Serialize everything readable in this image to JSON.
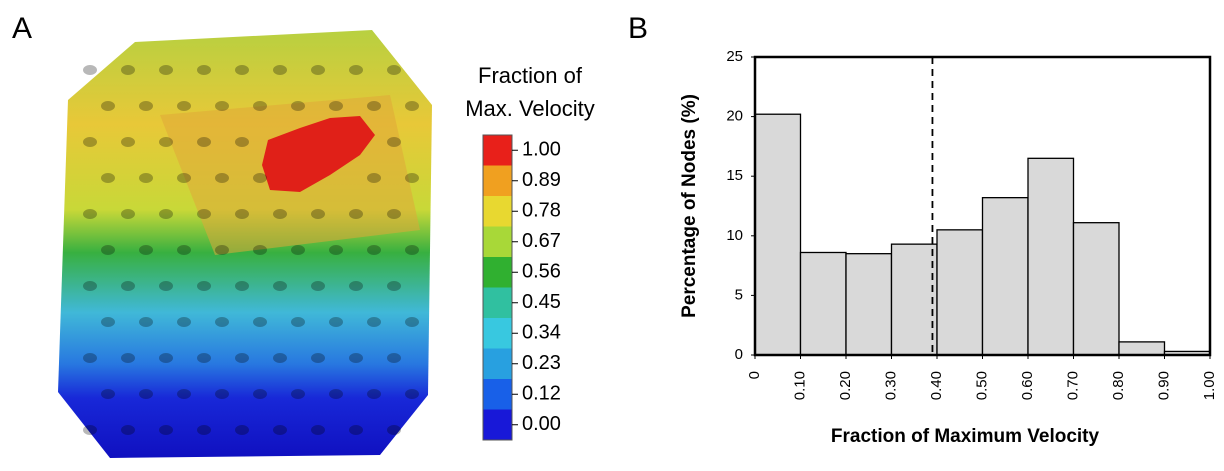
{
  "panel_a": {
    "label": "A",
    "legend_title": [
      "Fraction of",
      "Max. Velocity"
    ],
    "colorbar": {
      "ticks": [
        {
          "value": 1,
          "label": "1.00"
        },
        0.89,
        0.78,
        0.67,
        0.56,
        0.45,
        0.34,
        0.23,
        0.12,
        {
          "value": 0,
          "label": "0.00"
        }
      ],
      "colors": [
        "#e8201a",
        "#f0a020",
        "#e8d830",
        "#a8d838",
        "#30b030",
        "#30c0a0",
        "#38c8e0",
        "#28a0e0",
        "#1860e8",
        "#1818d8"
      ]
    }
  },
  "chart_data": {
    "type": "histogram",
    "label": "B",
    "xlabel": "Fraction of Maximum Velocity",
    "ylabel": "Percentage of Nodes (%)",
    "bins": [
      0,
      0.1,
      0.2,
      0.3,
      0.4,
      0.5,
      0.6,
      0.7,
      0.8,
      0.9,
      1.0
    ],
    "values": [
      20.2,
      8.6,
      8.5,
      9.3,
      10.5,
      13.2,
      16.5,
      11.1,
      1.1,
      0.3
    ],
    "color": "#d9d9d9",
    "reference_line": 0.39,
    "xlim": [
      0,
      1
    ],
    "ylim": [
      0,
      25
    ],
    "xticks": [
      0,
      {
        "value": 0.1,
        "label": "0.10"
      },
      {
        "value": 0.2,
        "label": "0.20"
      },
      {
        "value": 0.3,
        "label": "0.30"
      },
      {
        "value": 0.4,
        "label": "0.40"
      },
      {
        "value": 0.5,
        "label": "0.50"
      },
      {
        "value": 0.6,
        "label": "0.60"
      },
      {
        "value": 0.7,
        "label": "0.70"
      },
      {
        "value": 0.8,
        "label": "0.80"
      },
      {
        "value": 0.9,
        "label": "0.90"
      },
      {
        "value": 1.0,
        "label": "1.00"
      }
    ],
    "yticks": [
      0,
      5,
      10,
      15,
      20,
      25
    ]
  }
}
